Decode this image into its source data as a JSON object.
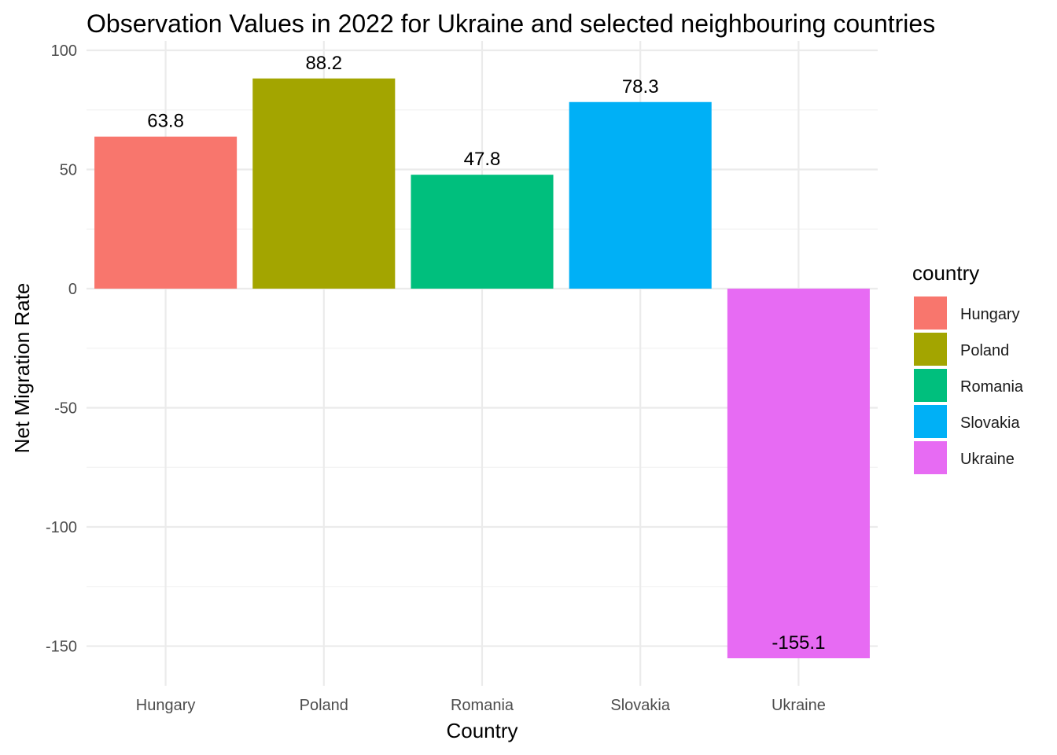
{
  "chart_data": {
    "type": "bar",
    "title": "Observation Values in 2022 for Ukraine and selected neighbouring countries",
    "xlabel": "Country",
    "ylabel": "Net Migration Rate",
    "categories": [
      "Hungary",
      "Poland",
      "Romania",
      "Slovakia",
      "Ukraine"
    ],
    "values": [
      63.8,
      88.2,
      47.8,
      78.3,
      -155.1
    ],
    "value_labels": [
      "63.8",
      "88.2",
      "47.8",
      "78.3",
      "-155.1"
    ],
    "colors": [
      "#F8766D",
      "#A3A500",
      "#00BF7D",
      "#00B0F6",
      "#E76BF3"
    ],
    "ylim": [
      -165,
      101
    ],
    "yticks": [
      100,
      50,
      0,
      -50,
      -100,
      -150
    ],
    "ytick_labels": [
      "100",
      "50",
      "0",
      "-50",
      "-100",
      "-150"
    ],
    "grid": true,
    "legend": {
      "title": "country",
      "position": "right",
      "entries": [
        "Hungary",
        "Poland",
        "Romania",
        "Slovakia",
        "Ukraine"
      ]
    }
  }
}
